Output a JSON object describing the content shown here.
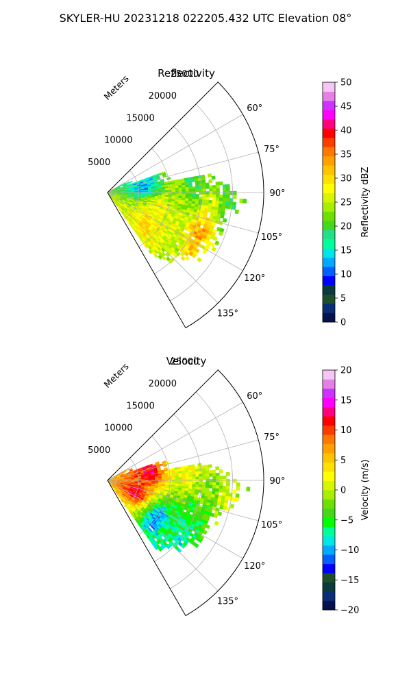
{
  "figure": {
    "suptitle": "SKYLER-HU  20231218  022205.432 UTC Elevation 08°"
  },
  "chart_data": [
    {
      "type": "heatmap",
      "projection": "polar-sector",
      "title": "Reflectivity",
      "radial_axis_label": "Meters",
      "radial_ticks": [
        5000,
        10000,
        15000,
        20000,
        25000
      ],
      "radial_tick_labels": [
        "5000",
        "10000",
        "15000",
        "20000",
        "25000"
      ],
      "r_max": 25000,
      "azimuth_range_deg": [
        45,
        150
      ],
      "azimuth_ticks_deg": [
        60,
        75,
        90,
        105,
        120,
        135
      ],
      "azimuth_tick_labels": [
        "60°",
        "75°",
        "90°",
        "105°",
        "120°",
        "135°"
      ],
      "grid": true,
      "colorbar": {
        "label": "Reflectivity dBZ",
        "min": 0,
        "max": 50,
        "ticks": [
          0,
          5,
          10,
          15,
          20,
          25,
          30,
          35,
          40,
          45,
          50
        ],
        "tick_labels": [
          "0",
          "5",
          "10",
          "15",
          "20",
          "25",
          "30",
          "35",
          "40",
          "45",
          "50"
        ],
        "colors": [
          "#04124e",
          "#0a2d78",
          "#1d4f2a",
          "#0a3a3a",
          "#0000ff",
          "#0060ff",
          "#00a8ff",
          "#00e6e6",
          "#00ff9a",
          "#22e08a",
          "#44d81a",
          "#6ee000",
          "#a8ee00",
          "#d6f500",
          "#ffff00",
          "#ffe000",
          "#ffc400",
          "#ffa000",
          "#ff7800",
          "#ff3c00",
          "#ff0000",
          "#ff0080",
          "#ff00ff",
          "#cc33ff",
          "#e580e6",
          "#f3c6f3"
        ]
      },
      "field_samples": [
        {
          "az": 80,
          "r": 6000,
          "v": 12
        },
        {
          "az": 85,
          "r": 14000,
          "v": 20
        },
        {
          "az": 95,
          "r": 20000,
          "v": 20
        },
        {
          "az": 112,
          "r": 8000,
          "v": 28
        },
        {
          "az": 115,
          "r": 16000,
          "v": 33
        },
        {
          "az": 128,
          "r": 8000,
          "v": 30
        },
        {
          "az": 132,
          "r": 14000,
          "v": 25
        }
      ]
    },
    {
      "type": "heatmap",
      "projection": "polar-sector",
      "title": "Velocity",
      "radial_axis_label": "Meters",
      "radial_ticks": [
        5000,
        10000,
        15000,
        20000,
        25000
      ],
      "radial_tick_labels": [
        "5000",
        "10000",
        "15000",
        "20000",
        "25000"
      ],
      "r_max": 25000,
      "azimuth_range_deg": [
        45,
        150
      ],
      "azimuth_ticks_deg": [
        60,
        75,
        90,
        105,
        120,
        135
      ],
      "azimuth_tick_labels": [
        "60°",
        "75°",
        "90°",
        "105°",
        "120°",
        "135°"
      ],
      "grid": true,
      "colorbar": {
        "label": "Velocity (m/s)",
        "min": -20,
        "max": 20,
        "ticks": [
          -20,
          -15,
          -10,
          -5,
          0,
          5,
          10,
          15,
          20
        ],
        "tick_labels": [
          "−20",
          "−15",
          "−10",
          "−5",
          "0",
          "5",
          "10",
          "15",
          "20"
        ],
        "colors": [
          "#04124e",
          "#0a2d78",
          "#0a3a3a",
          "#1d4f2a",
          "#0000ff",
          "#0060ff",
          "#00a8ff",
          "#00e6e6",
          "#00ff9a",
          "#00ff00",
          "#44d81a",
          "#6ee000",
          "#a8ee00",
          "#d6f500",
          "#ffff00",
          "#ffe000",
          "#ffc400",
          "#ffa000",
          "#ff7800",
          "#ff3c00",
          "#ff0000",
          "#ff0080",
          "#ff00ff",
          "#cc33ff",
          "#e580e6",
          "#f3c6f3"
        ]
      },
      "field_samples": [
        {
          "az": 80,
          "r": 7000,
          "v": 12
        },
        {
          "az": 88,
          "r": 13000,
          "v": 2
        },
        {
          "az": 100,
          "r": 20000,
          "v": 1
        },
        {
          "az": 112,
          "r": 5000,
          "v": 12
        },
        {
          "az": 118,
          "r": 14000,
          "v": -6
        },
        {
          "az": 128,
          "r": 10000,
          "v": -11
        },
        {
          "az": 132,
          "r": 15000,
          "v": -8
        }
      ]
    }
  ]
}
